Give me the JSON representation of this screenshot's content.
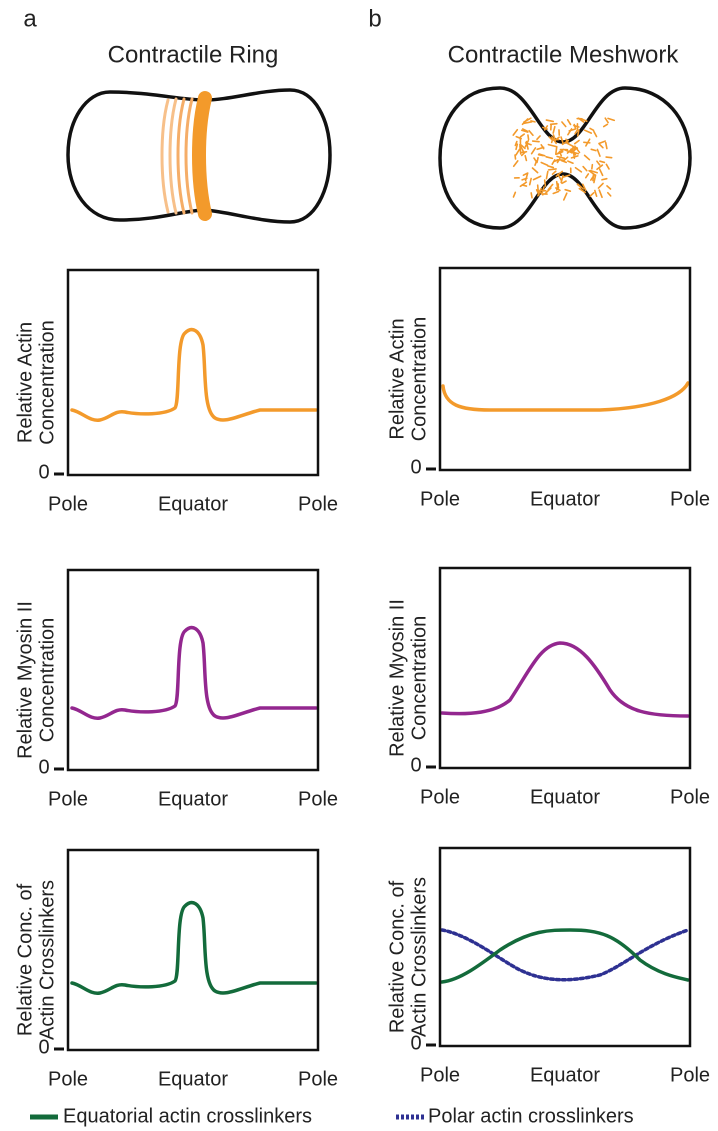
{
  "panels": [
    {
      "label": "a",
      "title": "Contractile Ring",
      "plots": [
        {
          "ylabel": [
            "Relative Actin",
            "Concentration"
          ],
          "zero": "0",
          "xlabels": [
            "Pole",
            "Equator",
            "Pole"
          ]
        },
        {
          "ylabel": [
            "Relative Myosin II",
            "Concentration"
          ],
          "zero": "0",
          "xlabels": [
            "Pole",
            "Equator",
            "Pole"
          ]
        },
        {
          "ylabel": [
            "Relative Conc. of",
            "Actin Crosslinkers"
          ],
          "zero": "0",
          "xlabels": [
            "Pole",
            "Equator",
            "Pole"
          ]
        }
      ]
    },
    {
      "label": "b",
      "title": "Contractile Meshwork",
      "plots": [
        {
          "ylabel": [
            "Relative Actin",
            "Concentration"
          ],
          "zero": "0",
          "xlabels": [
            "Pole",
            "Equator",
            "Pole"
          ]
        },
        {
          "ylabel": [
            "Relative Myosin II",
            "Concentration"
          ],
          "zero": "0",
          "xlabels": [
            "Pole",
            "Equator",
            "Pole"
          ]
        },
        {
          "ylabel": [
            "Relative Conc. of",
            "Actin Crosslinkers"
          ],
          "zero": "0",
          "xlabels": [
            "Pole",
            "Equator",
            "Pole"
          ]
        }
      ]
    }
  ],
  "legend": [
    "Equatorial actin crosslinkers",
    "Polar actin crosslinkers"
  ]
}
